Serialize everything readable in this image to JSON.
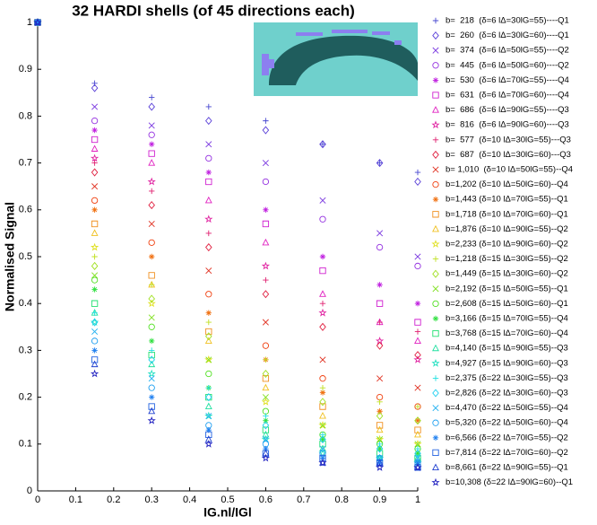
{
  "chart_data": {
    "type": "scatter",
    "title": "32 HARDI shells (of 45 directions each)",
    "x_label": "IG.nl/IGl",
    "y_label": "Normalised Signal",
    "x": [
      0,
      0.15,
      0.3,
      0.45,
      0.6,
      0.75,
      0.9,
      1
    ],
    "xlim": [
      0,
      1
    ],
    "ylim": [
      0,
      1
    ],
    "xticks": [
      0,
      0.1,
      0.2,
      0.3,
      0.4,
      0.5,
      0.6,
      0.7,
      0.8,
      0.9,
      1
    ],
    "yticks": [
      0,
      0.1,
      0.2,
      0.3,
      0.4,
      0.5,
      0.6,
      0.7,
      0.8,
      0.9,
      1
    ],
    "legend": "right",
    "series": [
      {
        "name": "b=  218  (δ=6 lΔ=30lG=55)----Q1",
        "color": "#4848d0",
        "marker": "plus",
        "values": [
          1,
          0.87,
          0.84,
          0.82,
          0.79,
          0.74,
          0.7,
          0.68
        ]
      },
      {
        "name": "b=  260  (δ=6 lΔ=30lG=60)----Q1",
        "color": "#5a40d8",
        "marker": "diamond",
        "values": [
          1,
          0.86,
          0.82,
          0.79,
          0.77,
          0.74,
          0.7,
          0.66
        ]
      },
      {
        "name": "b=  374  (δ=6 lΔ=50lG=55)----Q2",
        "color": "#7a38e0",
        "marker": "x",
        "values": [
          1,
          0.82,
          0.78,
          0.74,
          0.7,
          0.62,
          0.55,
          0.5
        ]
      },
      {
        "name": "b=  445  (δ=6 lΔ=50lG=60)----Q2",
        "color": "#9430e0",
        "marker": "circle",
        "values": [
          1,
          0.79,
          0.76,
          0.71,
          0.66,
          0.58,
          0.52,
          0.48
        ]
      },
      {
        "name": "b=  530  (δ=6 lΔ=70lG=55)----Q4",
        "color": "#c020e0",
        "marker": "asterisk",
        "values": [
          1,
          0.77,
          0.74,
          0.68,
          0.6,
          0.5,
          0.44,
          0.4
        ]
      },
      {
        "name": "b=  631  (δ=6 lΔ=70lG=60)----Q4",
        "color": "#d020d0",
        "marker": "square",
        "values": [
          1,
          0.75,
          0.72,
          0.66,
          0.57,
          0.47,
          0.4,
          0.36
        ]
      },
      {
        "name": "b=  686  (δ=6 lΔ=90lG=55)----Q3",
        "color": "#e020c0",
        "marker": "triangle",
        "values": [
          1,
          0.73,
          0.7,
          0.62,
          0.53,
          0.42,
          0.36,
          0.32
        ]
      },
      {
        "name": "b=  816  (δ=6 lΔ=90lG=60)----Q3",
        "color": "#e020a0",
        "marker": "star",
        "values": [
          1,
          0.71,
          0.66,
          0.58,
          0.48,
          0.38,
          0.32,
          0.28
        ]
      },
      {
        "name": "b=  577  (δ=10 lΔ=30lG=55)---Q3",
        "color": "#e02070",
        "marker": "plus",
        "values": [
          1,
          0.7,
          0.64,
          0.55,
          0.45,
          0.4,
          0.36,
          0.34
        ]
      },
      {
        "name": "b=  687  (δ=10 lΔ=30lG=60)---Q3",
        "color": "#e02040",
        "marker": "diamond",
        "values": [
          1,
          0.68,
          0.61,
          0.52,
          0.42,
          0.35,
          0.31,
          0.29
        ]
      },
      {
        "name": "b= 1,010  (δ=10 lΔ=50lG=55)--Q4",
        "color": "#e03020",
        "marker": "x",
        "values": [
          1,
          0.65,
          0.57,
          0.47,
          0.36,
          0.28,
          0.24,
          0.22
        ]
      },
      {
        "name": "b=1,202 (δ=10 lΔ=50lG=60)--Q4",
        "color": "#f04010",
        "marker": "circle",
        "values": [
          1,
          0.62,
          0.53,
          0.42,
          0.31,
          0.24,
          0.2,
          0.18
        ]
      },
      {
        "name": "b=1,443 (δ=10 lΔ=70lG=55)--Q1",
        "color": "#f07010",
        "marker": "asterisk",
        "values": [
          1,
          0.6,
          0.5,
          0.38,
          0.28,
          0.21,
          0.17,
          0.15
        ]
      },
      {
        "name": "b=1,718 (δ=10 lΔ=70lG=60)--Q1",
        "color": "#f09020",
        "marker": "square",
        "values": [
          1,
          0.57,
          0.46,
          0.34,
          0.24,
          0.18,
          0.14,
          0.13
        ]
      },
      {
        "name": "b=1,876 (δ=10 lΔ=90lG=55)--Q2",
        "color": "#f0c020",
        "marker": "triangle",
        "values": [
          1,
          0.55,
          0.44,
          0.32,
          0.22,
          0.16,
          0.13,
          0.12
        ]
      },
      {
        "name": "b=2,233 (δ=10 lΔ=90lG=60)--Q2",
        "color": "#e0e020",
        "marker": "star",
        "values": [
          1,
          0.52,
          0.4,
          0.28,
          0.19,
          0.14,
          0.11,
          0.1
        ]
      },
      {
        "name": "b=1,218 (δ=15 lΔ=30lG=55)--Q2",
        "color": "#c0e020",
        "marker": "plus",
        "values": [
          1,
          0.5,
          0.44,
          0.36,
          0.28,
          0.22,
          0.19,
          0.18
        ]
      },
      {
        "name": "b=1,449 (δ=15 lΔ=30lG=60)--Q2",
        "color": "#a0e020",
        "marker": "diamond",
        "values": [
          1,
          0.48,
          0.41,
          0.33,
          0.25,
          0.19,
          0.16,
          0.15
        ]
      },
      {
        "name": "b=2,192 (δ=15 lΔ=50lG=55)--Q1",
        "color": "#80e020",
        "marker": "x",
        "values": [
          1,
          0.46,
          0.37,
          0.28,
          0.2,
          0.14,
          0.11,
          0.1
        ]
      },
      {
        "name": "b=2,608 (δ=15 lΔ=50lG=60)--Q1",
        "color": "#50e020",
        "marker": "circle",
        "values": [
          1,
          0.45,
          0.35,
          0.25,
          0.17,
          0.12,
          0.1,
          0.09
        ]
      },
      {
        "name": "b=3,166 (δ=15 lΔ=70lG=55)--Q4",
        "color": "#30e040",
        "marker": "asterisk",
        "values": [
          1,
          0.43,
          0.32,
          0.22,
          0.15,
          0.11,
          0.09,
          0.08
        ]
      },
      {
        "name": "b=3,768 (δ=15 lΔ=70lG=60)--Q4",
        "color": "#20e070",
        "marker": "square",
        "values": [
          1,
          0.4,
          0.29,
          0.2,
          0.13,
          0.1,
          0.08,
          0.07
        ]
      },
      {
        "name": "b=4,140 (δ=15 lΔ=90lG=55)--Q3",
        "color": "#20e0a0",
        "marker": "triangle",
        "values": [
          1,
          0.38,
          0.27,
          0.18,
          0.12,
          0.09,
          0.07,
          0.07
        ]
      },
      {
        "name": "b=4,927 (δ=15 lΔ=90lG=60)--Q3",
        "color": "#20e0c0",
        "marker": "star",
        "values": [
          1,
          0.36,
          0.25,
          0.16,
          0.11,
          0.08,
          0.07,
          0.06
        ]
      },
      {
        "name": "b=2,375 (δ=22 lΔ=30lG=55)--Q3",
        "color": "#20e0e0",
        "marker": "plus",
        "values": [
          1,
          0.38,
          0.3,
          0.22,
          0.16,
          0.12,
          0.1,
          0.09
        ]
      },
      {
        "name": "b=2,826 (δ=22 lΔ=30lG=60)--Q3",
        "color": "#20d0f0",
        "marker": "diamond",
        "values": [
          1,
          0.36,
          0.28,
          0.2,
          0.14,
          0.11,
          0.09,
          0.08
        ]
      },
      {
        "name": "b=4,470 (δ=22 lΔ=50lG=55)--Q4",
        "color": "#20b0f0",
        "marker": "x",
        "values": [
          1,
          0.34,
          0.24,
          0.16,
          0.11,
          0.09,
          0.07,
          0.07
        ]
      },
      {
        "name": "b=5,320 (δ=22 lΔ=50lG=60)--Q4",
        "color": "#20a0f0",
        "marker": "circle",
        "values": [
          1,
          0.32,
          0.22,
          0.14,
          0.1,
          0.08,
          0.07,
          0.06
        ]
      },
      {
        "name": "b=6,566 (δ=22 lΔ=70lG=55)--Q2",
        "color": "#2080f0",
        "marker": "asterisk",
        "values": [
          1,
          0.3,
          0.2,
          0.13,
          0.09,
          0.07,
          0.06,
          0.06
        ]
      },
      {
        "name": "b=7,814 (δ=22 lΔ=70lG=60)--Q2",
        "color": "#2060e0",
        "marker": "square",
        "values": [
          1,
          0.28,
          0.18,
          0.12,
          0.08,
          0.07,
          0.06,
          0.05
        ]
      },
      {
        "name": "b=8,661 (δ=22 lΔ=90lG=55)--Q1",
        "color": "#2040d0",
        "marker": "triangle",
        "values": [
          1,
          0.27,
          0.17,
          0.11,
          0.08,
          0.06,
          0.06,
          0.05
        ]
      },
      {
        "name": "b=10,308 (δ=22 lΔ=90lG=60)--Q1",
        "color": "#2020c0",
        "marker": "star",
        "values": [
          1,
          0.25,
          0.15,
          0.1,
          0.07,
          0.06,
          0.05,
          0.05
        ]
      }
    ]
  }
}
